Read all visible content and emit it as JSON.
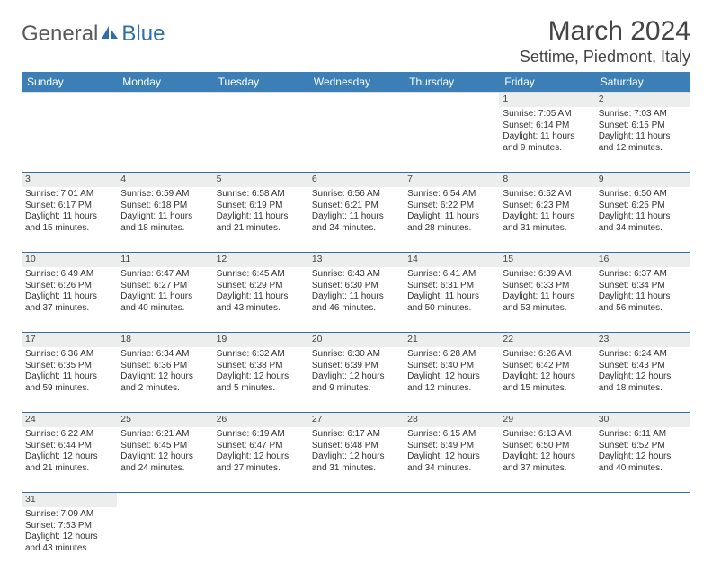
{
  "brand": {
    "part1": "General",
    "part2": "Blue"
  },
  "header": {
    "month_title": "March 2024",
    "location": "Settime, Piedmont, Italy"
  },
  "colors": {
    "header_bg": "#3b7fb6",
    "daynum_bg": "#eceded",
    "divider": "#2f6fa7"
  },
  "weekdays": [
    "Sunday",
    "Monday",
    "Tuesday",
    "Wednesday",
    "Thursday",
    "Friday",
    "Saturday"
  ],
  "weeks": [
    [
      null,
      null,
      null,
      null,
      null,
      {
        "n": "1",
        "sr": "Sunrise: 7:05 AM",
        "ss": "Sunset: 6:14 PM",
        "d1": "Daylight: 11 hours",
        "d2": "and 9 minutes."
      },
      {
        "n": "2",
        "sr": "Sunrise: 7:03 AM",
        "ss": "Sunset: 6:15 PM",
        "d1": "Daylight: 11 hours",
        "d2": "and 12 minutes."
      }
    ],
    [
      {
        "n": "3",
        "sr": "Sunrise: 7:01 AM",
        "ss": "Sunset: 6:17 PM",
        "d1": "Daylight: 11 hours",
        "d2": "and 15 minutes."
      },
      {
        "n": "4",
        "sr": "Sunrise: 6:59 AM",
        "ss": "Sunset: 6:18 PM",
        "d1": "Daylight: 11 hours",
        "d2": "and 18 minutes."
      },
      {
        "n": "5",
        "sr": "Sunrise: 6:58 AM",
        "ss": "Sunset: 6:19 PM",
        "d1": "Daylight: 11 hours",
        "d2": "and 21 minutes."
      },
      {
        "n": "6",
        "sr": "Sunrise: 6:56 AM",
        "ss": "Sunset: 6:21 PM",
        "d1": "Daylight: 11 hours",
        "d2": "and 24 minutes."
      },
      {
        "n": "7",
        "sr": "Sunrise: 6:54 AM",
        "ss": "Sunset: 6:22 PM",
        "d1": "Daylight: 11 hours",
        "d2": "and 28 minutes."
      },
      {
        "n": "8",
        "sr": "Sunrise: 6:52 AM",
        "ss": "Sunset: 6:23 PM",
        "d1": "Daylight: 11 hours",
        "d2": "and 31 minutes."
      },
      {
        "n": "9",
        "sr": "Sunrise: 6:50 AM",
        "ss": "Sunset: 6:25 PM",
        "d1": "Daylight: 11 hours",
        "d2": "and 34 minutes."
      }
    ],
    [
      {
        "n": "10",
        "sr": "Sunrise: 6:49 AM",
        "ss": "Sunset: 6:26 PM",
        "d1": "Daylight: 11 hours",
        "d2": "and 37 minutes."
      },
      {
        "n": "11",
        "sr": "Sunrise: 6:47 AM",
        "ss": "Sunset: 6:27 PM",
        "d1": "Daylight: 11 hours",
        "d2": "and 40 minutes."
      },
      {
        "n": "12",
        "sr": "Sunrise: 6:45 AM",
        "ss": "Sunset: 6:29 PM",
        "d1": "Daylight: 11 hours",
        "d2": "and 43 minutes."
      },
      {
        "n": "13",
        "sr": "Sunrise: 6:43 AM",
        "ss": "Sunset: 6:30 PM",
        "d1": "Daylight: 11 hours",
        "d2": "and 46 minutes."
      },
      {
        "n": "14",
        "sr": "Sunrise: 6:41 AM",
        "ss": "Sunset: 6:31 PM",
        "d1": "Daylight: 11 hours",
        "d2": "and 50 minutes."
      },
      {
        "n": "15",
        "sr": "Sunrise: 6:39 AM",
        "ss": "Sunset: 6:33 PM",
        "d1": "Daylight: 11 hours",
        "d2": "and 53 minutes."
      },
      {
        "n": "16",
        "sr": "Sunrise: 6:37 AM",
        "ss": "Sunset: 6:34 PM",
        "d1": "Daylight: 11 hours",
        "d2": "and 56 minutes."
      }
    ],
    [
      {
        "n": "17",
        "sr": "Sunrise: 6:36 AM",
        "ss": "Sunset: 6:35 PM",
        "d1": "Daylight: 11 hours",
        "d2": "and 59 minutes."
      },
      {
        "n": "18",
        "sr": "Sunrise: 6:34 AM",
        "ss": "Sunset: 6:36 PM",
        "d1": "Daylight: 12 hours",
        "d2": "and 2 minutes."
      },
      {
        "n": "19",
        "sr": "Sunrise: 6:32 AM",
        "ss": "Sunset: 6:38 PM",
        "d1": "Daylight: 12 hours",
        "d2": "and 5 minutes."
      },
      {
        "n": "20",
        "sr": "Sunrise: 6:30 AM",
        "ss": "Sunset: 6:39 PM",
        "d1": "Daylight: 12 hours",
        "d2": "and 9 minutes."
      },
      {
        "n": "21",
        "sr": "Sunrise: 6:28 AM",
        "ss": "Sunset: 6:40 PM",
        "d1": "Daylight: 12 hours",
        "d2": "and 12 minutes."
      },
      {
        "n": "22",
        "sr": "Sunrise: 6:26 AM",
        "ss": "Sunset: 6:42 PM",
        "d1": "Daylight: 12 hours",
        "d2": "and 15 minutes."
      },
      {
        "n": "23",
        "sr": "Sunrise: 6:24 AM",
        "ss": "Sunset: 6:43 PM",
        "d1": "Daylight: 12 hours",
        "d2": "and 18 minutes."
      }
    ],
    [
      {
        "n": "24",
        "sr": "Sunrise: 6:22 AM",
        "ss": "Sunset: 6:44 PM",
        "d1": "Daylight: 12 hours",
        "d2": "and 21 minutes."
      },
      {
        "n": "25",
        "sr": "Sunrise: 6:21 AM",
        "ss": "Sunset: 6:45 PM",
        "d1": "Daylight: 12 hours",
        "d2": "and 24 minutes."
      },
      {
        "n": "26",
        "sr": "Sunrise: 6:19 AM",
        "ss": "Sunset: 6:47 PM",
        "d1": "Daylight: 12 hours",
        "d2": "and 27 minutes."
      },
      {
        "n": "27",
        "sr": "Sunrise: 6:17 AM",
        "ss": "Sunset: 6:48 PM",
        "d1": "Daylight: 12 hours",
        "d2": "and 31 minutes."
      },
      {
        "n": "28",
        "sr": "Sunrise: 6:15 AM",
        "ss": "Sunset: 6:49 PM",
        "d1": "Daylight: 12 hours",
        "d2": "and 34 minutes."
      },
      {
        "n": "29",
        "sr": "Sunrise: 6:13 AM",
        "ss": "Sunset: 6:50 PM",
        "d1": "Daylight: 12 hours",
        "d2": "and 37 minutes."
      },
      {
        "n": "30",
        "sr": "Sunrise: 6:11 AM",
        "ss": "Sunset: 6:52 PM",
        "d1": "Daylight: 12 hours",
        "d2": "and 40 minutes."
      }
    ],
    [
      {
        "n": "31",
        "sr": "Sunrise: 7:09 AM",
        "ss": "Sunset: 7:53 PM",
        "d1": "Daylight: 12 hours",
        "d2": "and 43 minutes."
      },
      null,
      null,
      null,
      null,
      null,
      null
    ]
  ]
}
